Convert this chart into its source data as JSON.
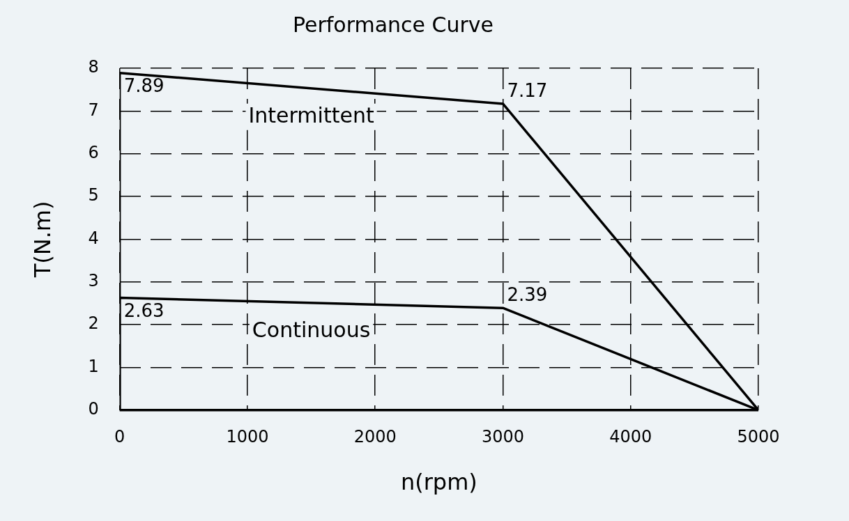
{
  "chart_data": {
    "type": "line",
    "title": "Performance Curve",
    "xlabel": "n(rpm)",
    "ylabel": "T(N.m)",
    "series": [
      {
        "name": "Intermittent",
        "color": "#000000",
        "x": [
          0,
          0,
          3000,
          5000
        ],
        "values": [
          0,
          7.89,
          7.17,
          0
        ],
        "value_labels": [
          null,
          "7.89",
          "7.17",
          null
        ]
      },
      {
        "name": "Continuous",
        "color": "#000000",
        "x": [
          0,
          0,
          3000,
          5000
        ],
        "values": [
          0,
          2.63,
          2.39,
          0
        ],
        "value_labels": [
          null,
          "2.63",
          "2.39",
          null
        ]
      }
    ],
    "xlim": [
      0,
      5000
    ],
    "xticks": [
      0,
      1000,
      2000,
      3000,
      4000,
      5000
    ],
    "ylim": [
      0,
      8
    ],
    "yticks": [
      0,
      1,
      2,
      3,
      4,
      5,
      6,
      7,
      8
    ],
    "grid": true,
    "legend": false,
    "marker": "none",
    "line_style": "solid"
  }
}
